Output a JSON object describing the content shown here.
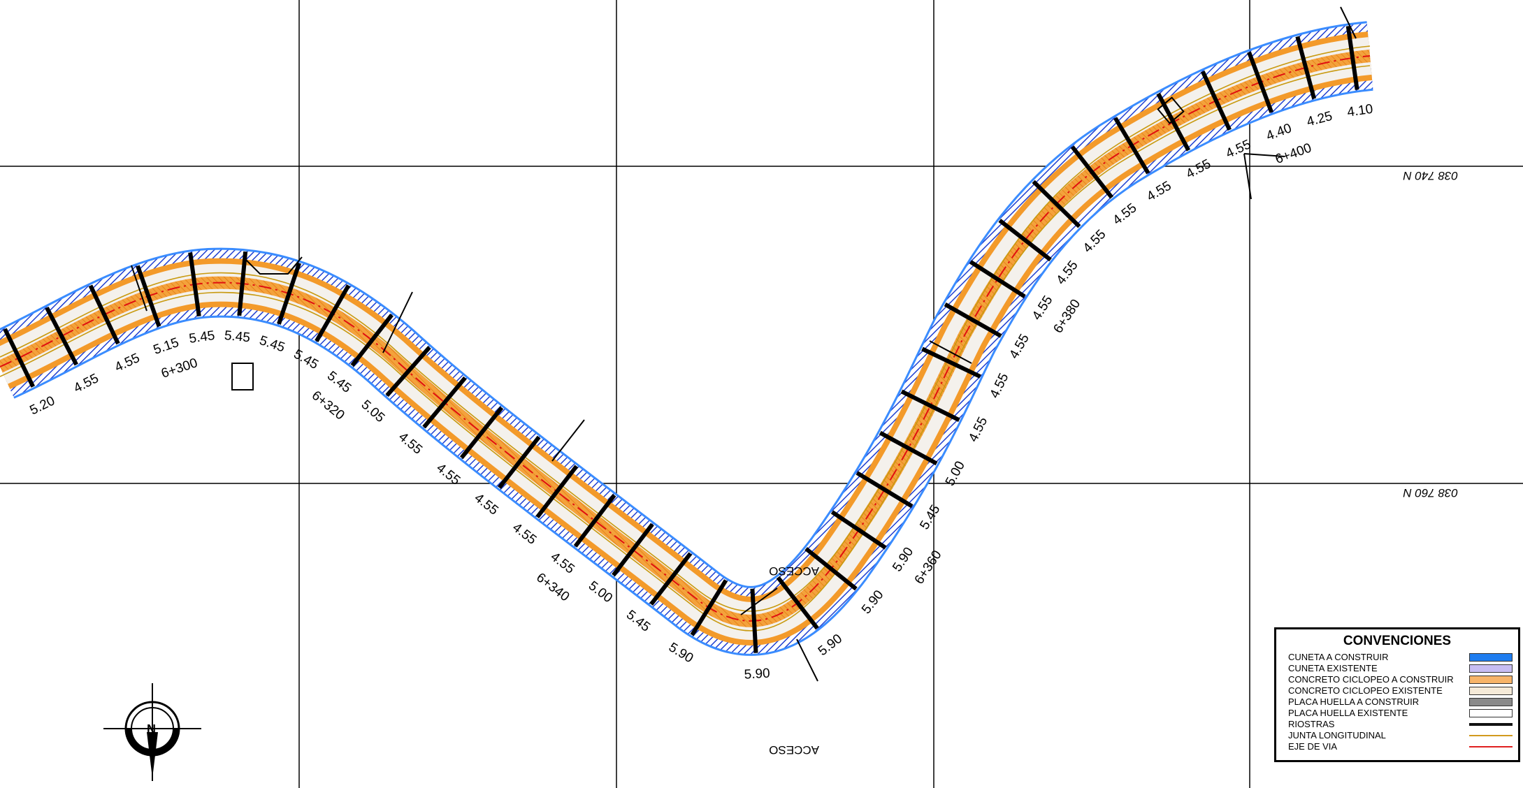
{
  "north_coords": [
    "038 740 N",
    "038 760 N"
  ],
  "stations": [
    "6+300",
    "6+320",
    "6+340",
    "6+360",
    "6+380",
    "6+400"
  ],
  "widths": [
    "5.20",
    "4.55",
    "4.55",
    "5.15",
    "5.45",
    "5.45",
    "5.45",
    "5.45",
    "5.45",
    "5.05",
    "4.55",
    "4.55",
    "4.55",
    "4.55",
    "4.55",
    "5.00",
    "5.45",
    "5.90",
    "5.90",
    "5.90",
    "5.90",
    "5.90",
    "5.45",
    "5.00",
    "4.55",
    "4.55",
    "4.55",
    "4.55",
    "4.55",
    "4.55",
    "4.55",
    "4.55",
    "4.55",
    "4.55",
    "4.40",
    "4.25",
    "4.10"
  ],
  "access_labels": [
    "ACCESO",
    "ACCESO"
  ],
  "compass_letter": "N",
  "legend": {
    "title": "CONVENCIONES",
    "items": [
      {
        "label": "CUNETA A CONSTRUIR",
        "swatch": "#1e7df0"
      },
      {
        "label": "CUNETA EXISTENTE",
        "swatch": "#c7bdf2"
      },
      {
        "label": "CONCRETO CICLOPEO A CONSTRUIR",
        "swatch": "#f7b469"
      },
      {
        "label": "CONCRETO CICLOPEO EXISTENTE",
        "swatch": "#f5ead8"
      },
      {
        "label": "PLACA HUELLA A CONSTRUIR",
        "swatch": "#8a8a8a"
      },
      {
        "label": "PLACA HUELLA EXISTENTE",
        "swatch": "#ffffff"
      },
      {
        "label": "RIOSTRAS",
        "swatch": "#111111"
      },
      {
        "label": "JUNTA LONGITUDINAL",
        "swatch": "#d29a1e"
      },
      {
        "label": "EJE DE VIA",
        "swatch": "#e02020"
      }
    ]
  },
  "colors": {
    "cuneta": "#1f4fd8",
    "cuneta_edge": "#3a8cff",
    "concreto": "#f39a2a",
    "placa": "#f3f3f3",
    "junta": "#c89a10",
    "eje": "#e01010",
    "riostra": "#000000",
    "grid": "#000000"
  }
}
